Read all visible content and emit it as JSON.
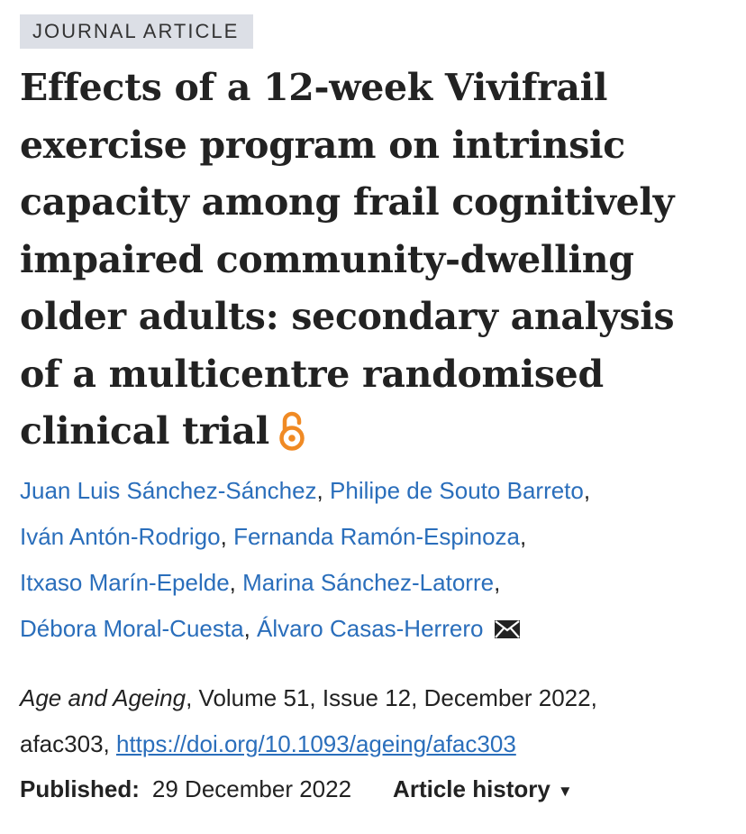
{
  "article_type": "JOURNAL ARTICLE",
  "title": "Effects of a 12-week Vivifrail exercise program on intrinsic capacity among frail cognitively impaired community-dwelling older adults: secondary analysis of a multicentre randomised clinical trial",
  "title_lines": [
    "Effects of a 12-week Vivifrail",
    "exercise program on intrinsic",
    "capacity among frail cognitively",
    "impaired community-dwelling",
    "older adults: secondary analysis",
    "of a multicentre randomised",
    "clinical trial"
  ],
  "open_access_icon": "open-access-lock-icon",
  "authors": [
    "Juan Luis Sánchez-Sánchez",
    "Philipe de Souto Barreto",
    "Iván Antón-Rodrigo",
    "Fernanda Ramón-Espinoza",
    "Itxaso Marín-Epelde",
    "Marina Sánchez-Latorre",
    "Débora Moral-Cuesta",
    "Álvaro Casas-Herrero"
  ],
  "separator": ",",
  "corresponding_icon": "envelope-icon",
  "citation": {
    "journal": "Age and Ageing",
    "details": ", Volume 51, Issue 12, December 2022,",
    "article_id": "afac303,",
    "doi": "https://doi.org/10.1093/ageing/afac303"
  },
  "published": {
    "label": "Published:",
    "date": "29 December 2022",
    "history_label": "Article history",
    "history_caret": "▼"
  },
  "colors": {
    "link": "#2a6ebb",
    "tag_bg": "#dcdfe6",
    "open_access": "#f08a24",
    "text": "#222222"
  }
}
